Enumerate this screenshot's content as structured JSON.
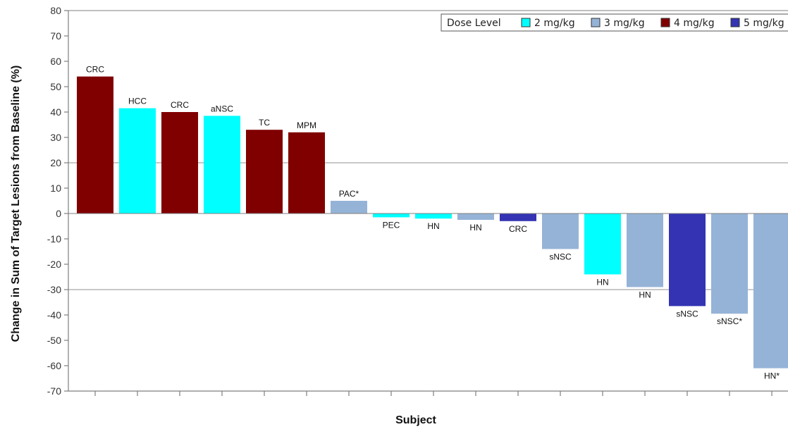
{
  "chart_data": {
    "type": "bar",
    "xlabel": "Subject",
    "ylabel": "Change in Sum of Target Lesions from Baseline (%)",
    "ylim": [
      -70,
      80
    ],
    "yticks": [
      80,
      70,
      60,
      50,
      40,
      30,
      20,
      10,
      0,
      -10,
      -20,
      -30,
      -40,
      -50,
      -60,
      -70
    ],
    "reference_lines": [
      20,
      -30
    ],
    "grid": false,
    "legend": {
      "title": "Dose Level",
      "placement": "top-right",
      "entries": [
        {
          "label": "2 mg/kg",
          "color": "#00ffff"
        },
        {
          "label": "3 mg/kg",
          "color": "#95b3d7"
        },
        {
          "label": "4 mg/kg",
          "color": "#800000"
        },
        {
          "label": "5 mg/kg",
          "color": "#3333b3"
        }
      ]
    },
    "bars": [
      {
        "label": "CRC",
        "value": 54,
        "dose": "4 mg/kg"
      },
      {
        "label": "HCC",
        "value": 41.5,
        "dose": "2 mg/kg"
      },
      {
        "label": "CRC",
        "value": 40,
        "dose": "4 mg/kg"
      },
      {
        "label": "aNSC",
        "value": 38.5,
        "dose": "2 mg/kg"
      },
      {
        "label": "TC",
        "value": 33,
        "dose": "4 mg/kg"
      },
      {
        "label": "MPM",
        "value": 32,
        "dose": "4 mg/kg"
      },
      {
        "label": "PAC*",
        "value": 5,
        "dose": "3 mg/kg"
      },
      {
        "label": "PEC",
        "value": -1.5,
        "dose": "2 mg/kg"
      },
      {
        "label": "HN",
        "value": -2,
        "dose": "2 mg/kg"
      },
      {
        "label": "HN",
        "value": -2.5,
        "dose": "3 mg/kg"
      },
      {
        "label": "CRC",
        "value": -3,
        "dose": "5 mg/kg"
      },
      {
        "label": "sNSC",
        "value": -14,
        "dose": "3 mg/kg"
      },
      {
        "label": "HN",
        "value": -24,
        "dose": "2 mg/kg"
      },
      {
        "label": "HN",
        "value": -29,
        "dose": "3 mg/kg"
      },
      {
        "label": "sNSC",
        "value": -36.5,
        "dose": "5 mg/kg"
      },
      {
        "label": "sNSC*",
        "value": -39.5,
        "dose": "3 mg/kg"
      },
      {
        "label": "HN*",
        "value": -61,
        "dose": "3 mg/kg"
      }
    ]
  }
}
